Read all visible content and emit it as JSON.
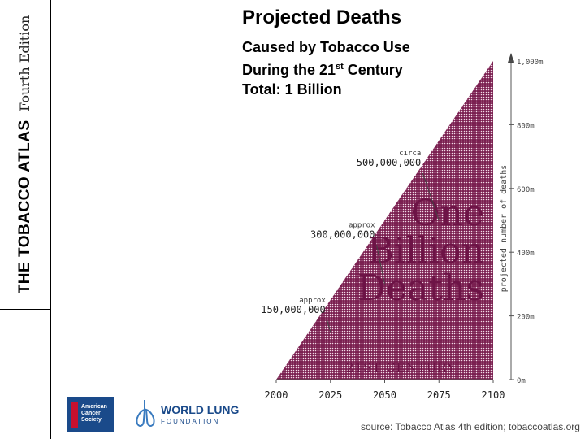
{
  "sidebar": {
    "atlas_title": "THE TOBACCO ATLAS",
    "edition": "Fourth Edition"
  },
  "header": {
    "title": "Projected Deaths",
    "line1": "Caused by Tobacco Use",
    "line2_pre": "During the 21",
    "line2_sup": "st",
    "line2_post": " Century",
    "line3": "Total: 1 Billion"
  },
  "chart_data": {
    "type": "area",
    "x": [
      2000,
      2100
    ],
    "y": [
      0,
      1000000000
    ],
    "xticks": [
      "2000",
      "2025",
      "2050",
      "2075",
      "2100"
    ],
    "xlim": [
      2000,
      2100
    ],
    "ylim": [
      0,
      1000000000
    ],
    "ylabel": "projected number of deaths",
    "yticks": [
      "0m",
      "200m",
      "400m",
      "600m",
      "800m",
      "1,000m"
    ],
    "annotations": [
      {
        "x": 2025,
        "y": 150000000,
        "label1": "approx",
        "label2": "150,000,000"
      },
      {
        "x": 2050,
        "y": 300000000,
        "label1": "approx",
        "label2": "300,000,000"
      },
      {
        "x": 2075,
        "y": 500000000,
        "label1": "circa",
        "label2": "500,000,000"
      }
    ],
    "overlay_text": [
      "One",
      "Billion",
      "Deaths"
    ],
    "band_label": "21ST CENTURY",
    "colors": {
      "fill": "#7a1f50",
      "text": "#6d1346",
      "dots": "#f2d9e6"
    }
  },
  "logos": {
    "acs": "American Cancer Society",
    "wlf_name": "WORLD LUNG",
    "wlf_sub": "FOUNDATION"
  },
  "source": "source: Tobacco Atlas 4th edition; tobaccoatlas.org"
}
